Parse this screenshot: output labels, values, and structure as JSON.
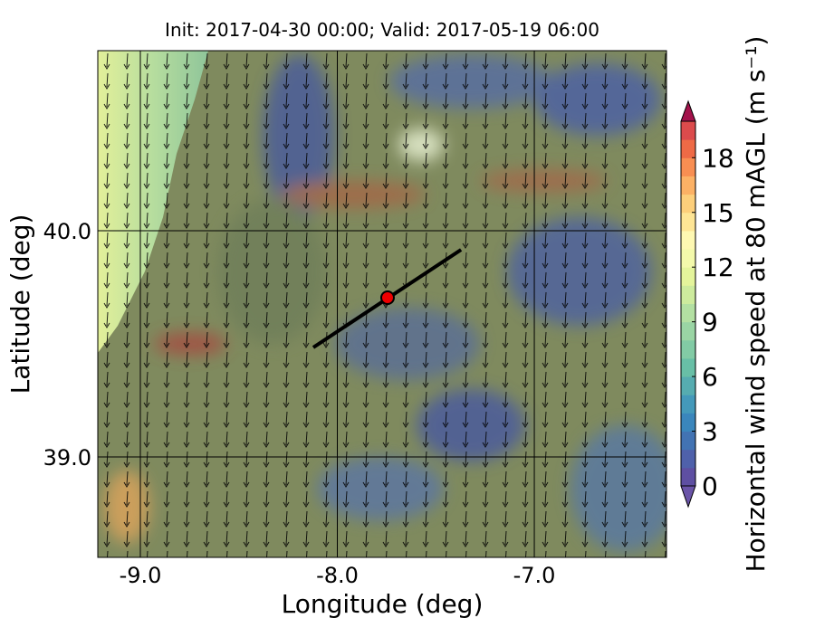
{
  "chart_data": {
    "type": "map",
    "title": "Init: 2017-04-30 00:00; Valid: 2017-05-19 06:00",
    "x_label": "Longitude (deg)",
    "y_label": "Latitude (deg)",
    "xlim": [
      -9.216,
      -6.329
    ],
    "ylim": [
      38.556,
      40.796
    ],
    "xticks": [
      {
        "value": -9,
        "label": "-9.0"
      },
      {
        "value": -8,
        "label": "-8.0"
      },
      {
        "value": -7,
        "label": "-7.0"
      }
    ],
    "yticks": [
      {
        "value": 39,
        "label": "39.0"
      },
      {
        "value": 40,
        "label": "40.0"
      }
    ],
    "grid": true,
    "transect": {
      "lon": [
        -8.122,
        -7.372
      ],
      "lat": [
        39.484,
        39.916
      ],
      "color": "#000000"
    },
    "site": {
      "lon": -7.745,
      "lat": 39.704,
      "color": "#ee0000"
    },
    "colorbar": {
      "label": "Horizontal wind speed at 80 mAGL (m s⁻¹)",
      "clim": [
        0,
        20
      ],
      "ticks": [
        0,
        3,
        6,
        9,
        12,
        15,
        18
      ],
      "colors": [
        "#5e4fa2",
        "#4f61ab",
        "#4273b3",
        "#3a86bc",
        "#4499ba",
        "#56acb0",
        "#68bfa6",
        "#82cba5",
        "#9ad5a4",
        "#b3e0a2",
        "#cdeb9d",
        "#e4f49b",
        "#f3f9ab",
        "#fef8b2",
        "#fee595",
        "#fdcf7b",
        "#fcb165",
        "#f88e52",
        "#ee6a46",
        "#dc4b4c"
      ],
      "under_color": "#6a54a8",
      "over_color": "#a3124b"
    }
  }
}
